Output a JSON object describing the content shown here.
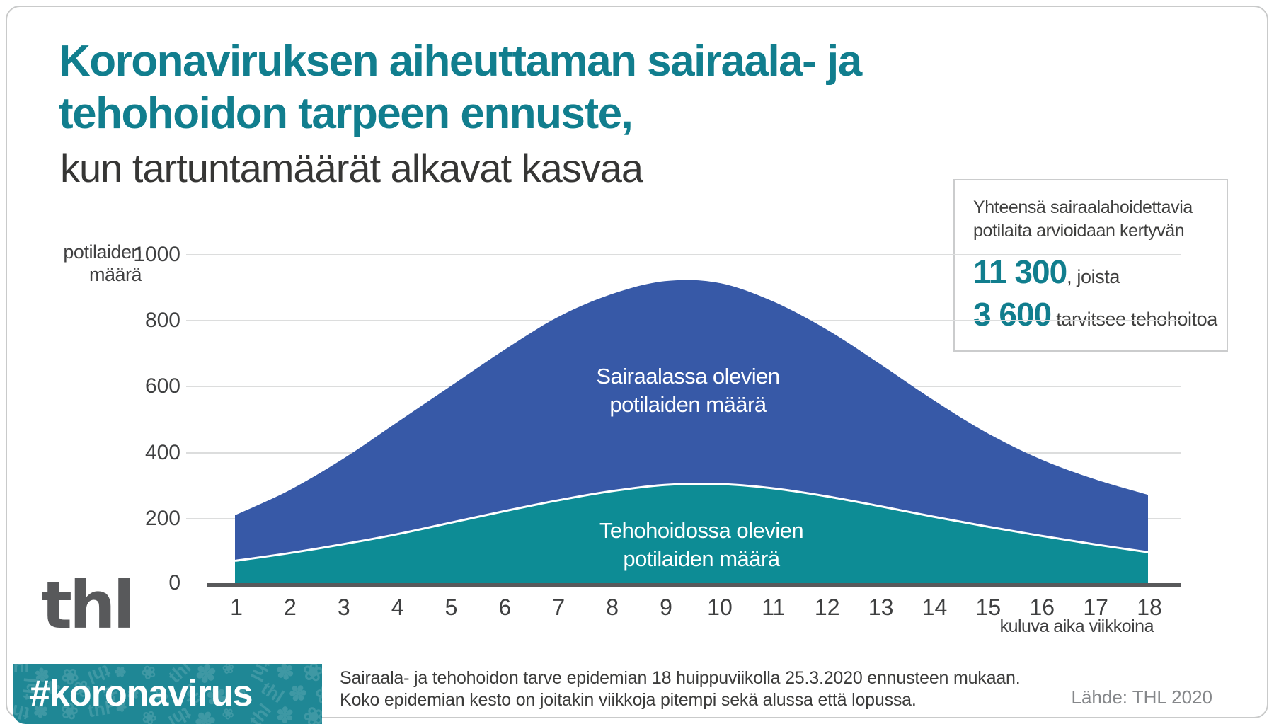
{
  "title": {
    "line1": "Koronaviruksen aiheuttaman sairaala- ja",
    "line2": "tehohoidon tarpeen ennuste,",
    "subtitle": "kun tartuntamäärät alkavat kasvaa"
  },
  "info_box": {
    "intro_line1": "Yhteensä sairaalahoidettavia",
    "intro_line2": "potilaita arvioidaan kertyvän",
    "stat1_value": "11 300",
    "stat1_suffix": ", joista",
    "stat2_value": "3 600",
    "stat2_suffix": " tarvitsee tehohoitoa"
  },
  "chart_data": {
    "type": "area",
    "x": [
      1,
      2,
      3,
      4,
      5,
      6,
      7,
      8,
      9,
      10,
      11,
      12,
      13,
      14,
      15,
      16,
      17,
      18
    ],
    "xlabel": "kuluva aika viikkoina",
    "ylabel_line1": "potilaiden",
    "ylabel_line2": "määrä",
    "ylim": [
      0,
      1000
    ],
    "yticks": [
      0,
      200,
      400,
      600,
      800,
      1000
    ],
    "grid": true,
    "legend_position": "inside-areas",
    "series": [
      {
        "name": "Sairaalassa olevien potilaiden määrä",
        "color": "#3759a7",
        "values": [
          210,
          285,
          380,
          490,
          600,
          710,
          810,
          880,
          920,
          915,
          860,
          775,
          670,
          560,
          460,
          380,
          320,
          272
        ]
      },
      {
        "name": "Tehohoidossa olevien potilaiden määrä",
        "color": "#0d8c95",
        "values": [
          72,
          95,
          122,
          152,
          187,
          222,
          255,
          283,
          302,
          305,
          292,
          268,
          238,
          206,
          176,
          148,
          122,
          98
        ]
      }
    ]
  },
  "chart_labels": {
    "hospital_line1": "Sairaalassa olevien",
    "hospital_line2": "potilaiden määrä",
    "icu_line1": "Tehohoidossa olevien",
    "icu_line2": "potilaiden määrä"
  },
  "logo": {
    "text": "thl"
  },
  "hashtag_bar": {
    "label": "#koronavirus",
    "pattern_glyphs": [
      "thl",
      "✽",
      "❀"
    ]
  },
  "footer": {
    "line1": "Sairaala- ja tehohoidon tarve epidemian 18 huippuviikolla 25.3.2020 ennusteen mukaan.",
    "line2": "Koko epidemian kesto on joitakin viikkoja pitempi sekä alussa että lopussa.",
    "source": "Lähde: THL 2020"
  },
  "colors": {
    "title_teal": "#117e8e",
    "hospital_blue": "#3759a7",
    "icu_teal": "#0d8c95",
    "axis_gray": "#58595b",
    "gridline": "#dcdddd",
    "bar_teal": "#1f8795",
    "boundary_stroke": "#ffffff"
  }
}
